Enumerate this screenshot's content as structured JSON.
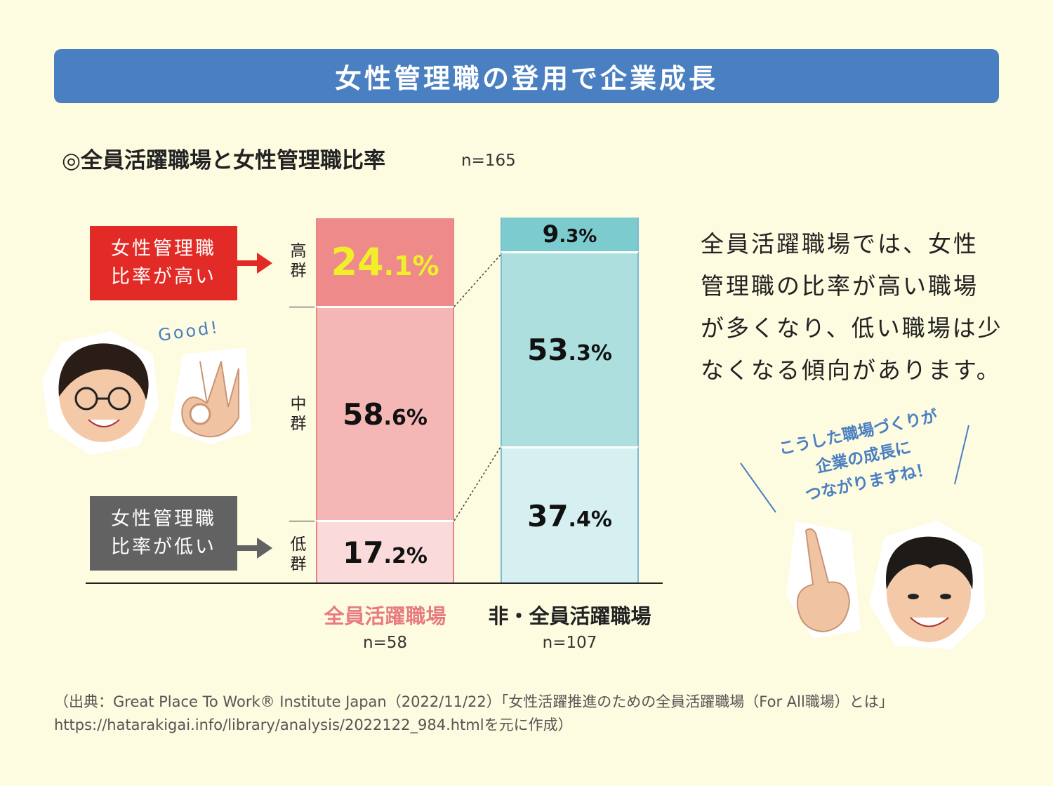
{
  "header": {
    "title": "女性管理職の登用で企業成長"
  },
  "chart_header": {
    "title": "◎全員活躍職場と女性管理職比率",
    "n": "n=165"
  },
  "tags": {
    "high": {
      "line1": "女性管理職",
      "line2": "比率が高い"
    },
    "low": {
      "line1": "女性管理職",
      "line2": "比率が低い"
    }
  },
  "groups": {
    "high": {
      "c1": "高",
      "c2": "群"
    },
    "mid": {
      "c1": "中",
      "c2": "群"
    },
    "low": {
      "c1": "低",
      "c2": "群"
    }
  },
  "colors": {
    "banner": "#4a7fc1",
    "bar1_high": "#ee8a89",
    "bar1_mid": "#f4b7b6",
    "bar1_low": "#fadadb",
    "bar2_high": "#7ccbce",
    "bar2_mid": "#addfdf",
    "bar2_low": "#d6eff0",
    "highlight_text": "#f1ef2a",
    "category1_text": "#e87b82",
    "category2_text": "#222222"
  },
  "chart_data": {
    "type": "bar",
    "stacked": true,
    "categories": [
      "全員活躍職場",
      "非・全員活躍職場"
    ],
    "category_n": [
      "n=58",
      "n=107"
    ],
    "series": [
      {
        "name": "低群",
        "values": [
          17.2,
          37.4
        ],
        "labels": [
          "17.2%",
          "37.4%"
        ]
      },
      {
        "name": "中群",
        "values": [
          58.6,
          53.3
        ],
        "labels": [
          "58.6%",
          "53.3%"
        ]
      },
      {
        "name": "高群",
        "values": [
          24.1,
          9.3
        ],
        "labels": [
          "24.1%",
          "9.3%"
        ]
      }
    ],
    "ylim": [
      0,
      100
    ]
  },
  "good_text": "Good!",
  "description": {
    "lines": [
      "全員活躍職場では、女性",
      "管理職の比率が高い職場",
      "が多くなり、低い職場は少",
      "なくなる傾向があります。"
    ]
  },
  "speech": {
    "lines": [
      "こうした職場づくりが",
      "企業の成長に",
      "つながりますね！"
    ]
  },
  "source": {
    "line1": "（出典：Great Place To Work® Institute Japan（2022/11/22）「女性活躍推進のための全員活躍職場（For All職場）とは」",
    "line2": "https://hatarakigai.info/library/analysis/2022122_984.htmlを元に作成）"
  },
  "icons": [
    "woman-face-icon",
    "ok-hand-icon",
    "man-face-icon",
    "pointing-hand-icon",
    "arrow-right-icon"
  ]
}
